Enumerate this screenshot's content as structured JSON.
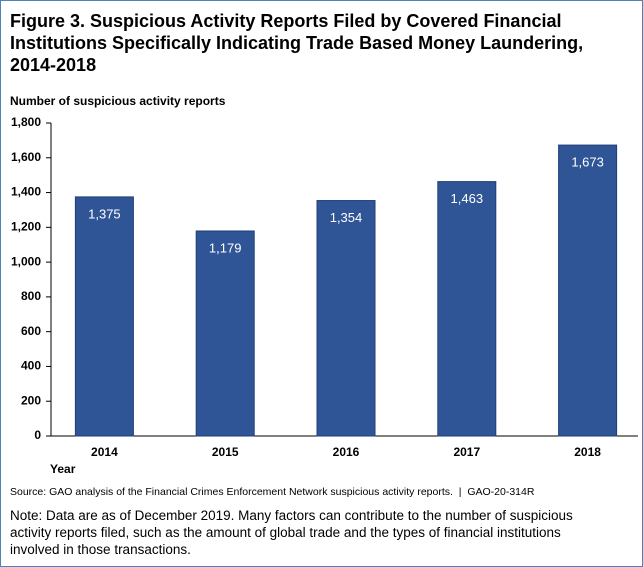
{
  "chart_data": {
    "type": "bar",
    "title": "Figure 3. Suspicious Activity Reports Filed by Covered Financial Institutions Specifically Indicating Trade Based Money Laundering, 2014-2018",
    "y_label": "Number of suspicious activity reports",
    "x_label": "Year",
    "categories": [
      "2014",
      "2015",
      "2016",
      "2017",
      "2018"
    ],
    "values": [
      1375,
      1179,
      1354,
      1463,
      1673
    ],
    "value_labels": [
      "1,375",
      "1,179",
      "1,354",
      "1,463",
      "1,673"
    ],
    "color": "#2f5597",
    "ylim": [
      0,
      1800
    ],
    "yticks": [
      0,
      200,
      400,
      600,
      800,
      {
        "value": 1000,
        "label": "1,000"
      },
      {
        "value": 1200,
        "label": "1,200"
      },
      {
        "value": 1400,
        "label": "1,400"
      },
      {
        "value": 1600,
        "label": "1,600"
      },
      {
        "value": 1800,
        "label": "1,800"
      }
    ],
    "source": "Source: GAO analysis of the Financial Crimes Enforcement Network suspicious activity reports.  |  GAO-20-314R",
    "note": "Note: Data are as of December 2019. Many factors can contribute to the number of suspicious activity reports filed, such as the amount of global trade and the types of financial institutions involved in those transactions."
  }
}
